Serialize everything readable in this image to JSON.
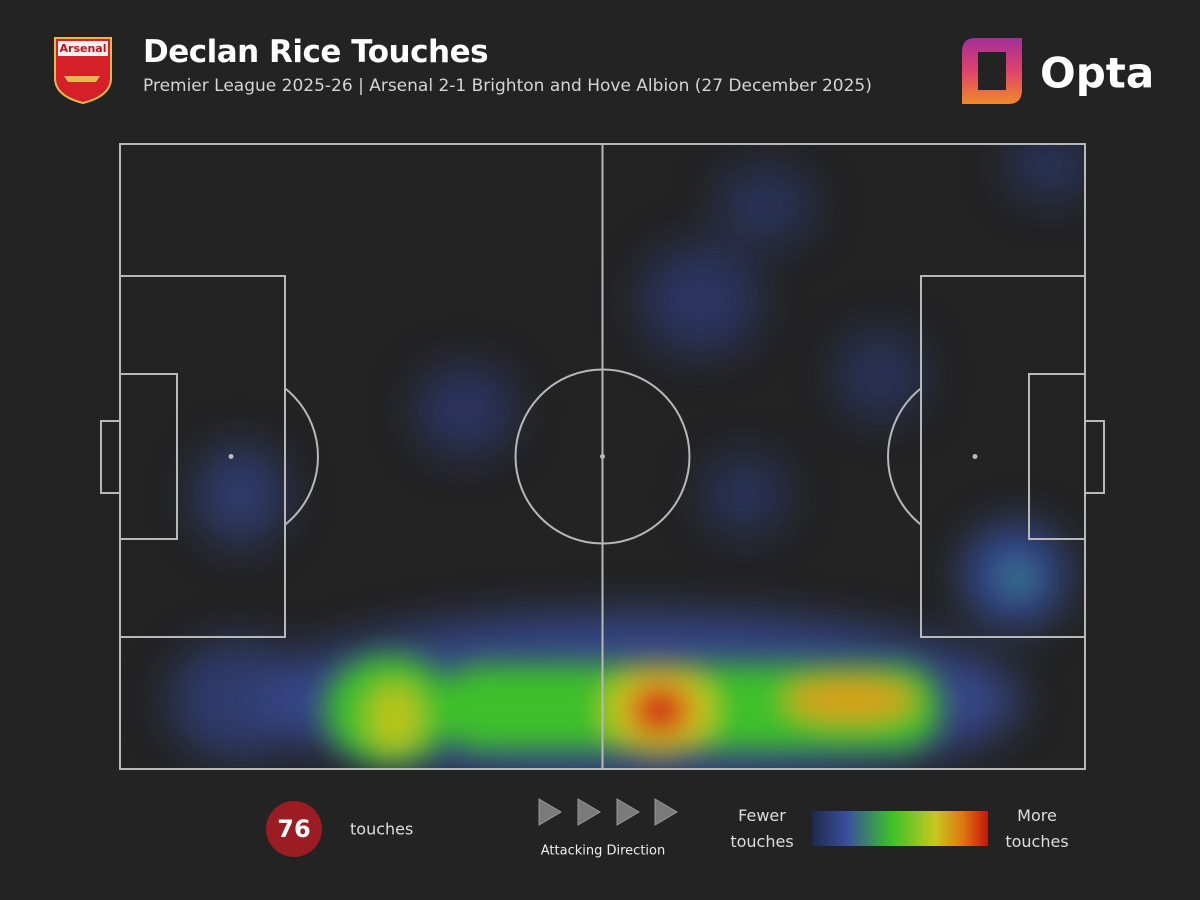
{
  "header": {
    "title": "Declan Rice Touches",
    "subtitle": "Premier League 2025-26 | Arsenal 2-1 Brighton and Hove Albion (27 December 2025)",
    "badge": "Arsenal",
    "brand": "Opta"
  },
  "stats": {
    "touches": 76,
    "label": "touches"
  },
  "direction": "Attacking Direction",
  "legend": {
    "low": "Fewer touches",
    "high": "More touches"
  }
}
